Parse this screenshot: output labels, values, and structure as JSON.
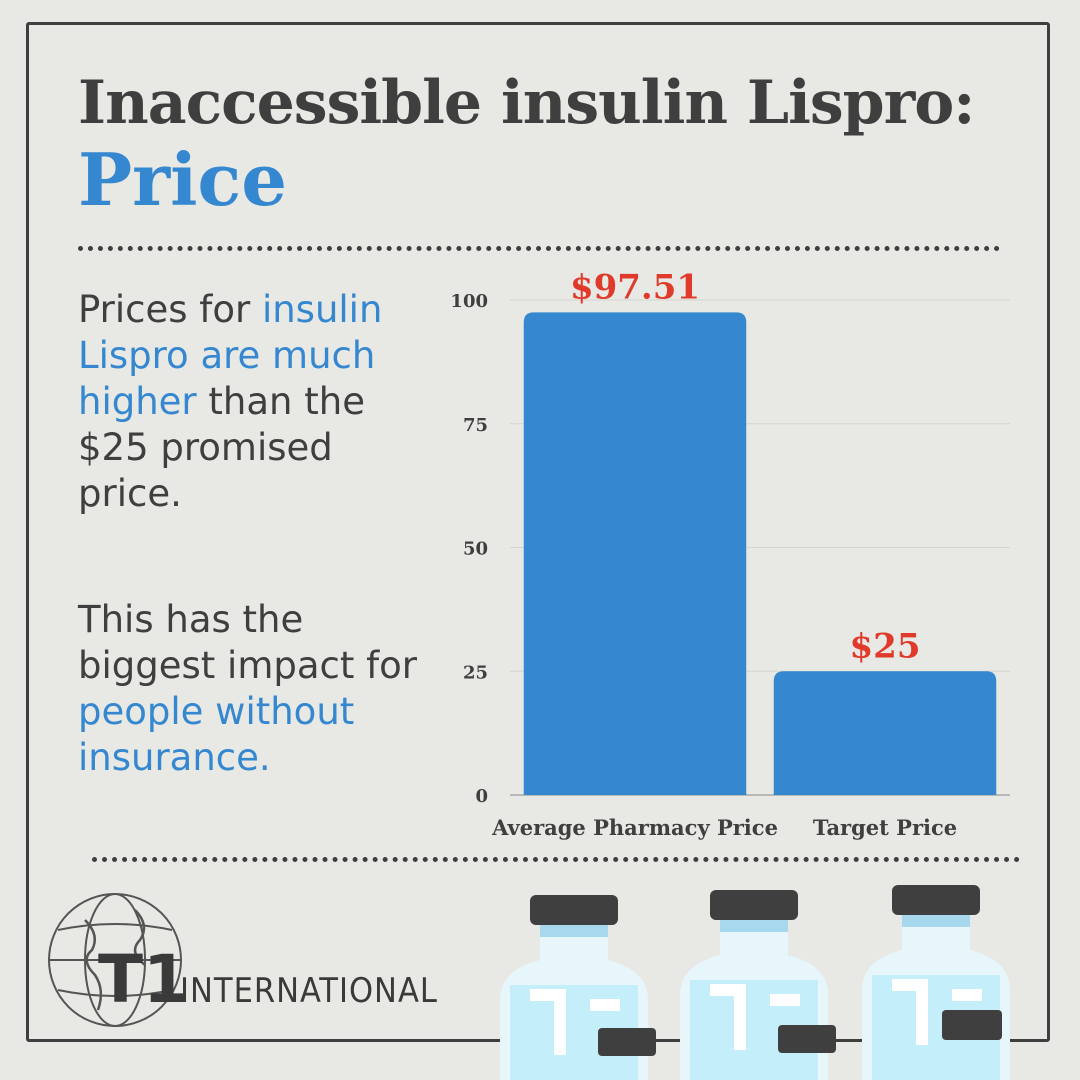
{
  "header": {
    "title": "Inaccessible insulin Lispro:",
    "subtitle": "Price"
  },
  "body": {
    "p1": {
      "a": "Prices for ",
      "b": "insulin Lispro are much higher",
      "c": " than the $25 promised price."
    },
    "p2": {
      "a": "This has the biggest impact for ",
      "b": "people without insurance."
    }
  },
  "logo": {
    "mark": "T1",
    "word": "INTERNATIONAL"
  },
  "colors": {
    "bar": "#3588d0",
    "label": "#e03a2a",
    "text": "#3f3f3f",
    "accent": "#3588d0"
  },
  "chart_data": {
    "type": "bar",
    "categories": [
      "Average Pharmacy Price",
      "Target Price"
    ],
    "values": [
      97.51,
      25
    ],
    "data_labels": [
      "$97.51",
      "$25"
    ],
    "ylim": [
      0,
      100
    ],
    "yticks": [
      0,
      25,
      50,
      75,
      100
    ],
    "grid": true
  }
}
